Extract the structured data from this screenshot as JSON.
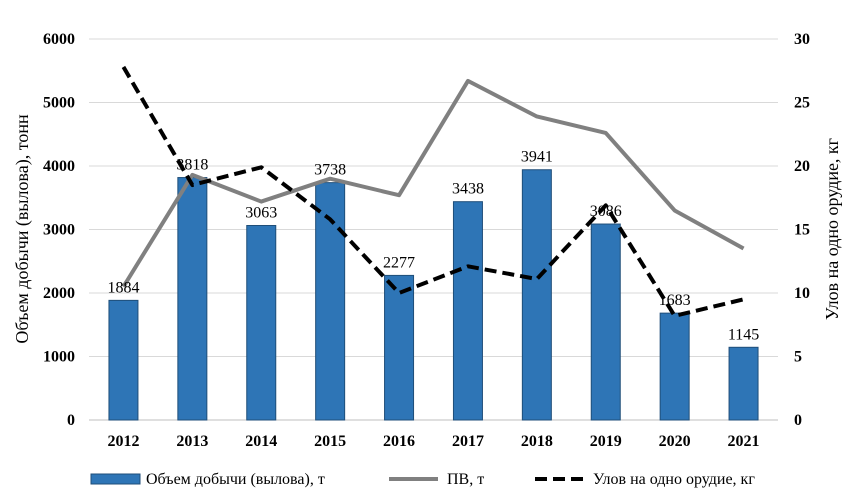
{
  "chart_data": {
    "type": "bar",
    "categories": [
      "2012",
      "2013",
      "2014",
      "2015",
      "2016",
      "2017",
      "2018",
      "2019",
      "2020",
      "2021"
    ],
    "series": [
      {
        "name": "Объем добычи (вылова), т",
        "type": "bar",
        "axis": "left",
        "color": "#2E75B6",
        "values": [
          1884,
          3818,
          3063,
          3738,
          2277,
          3438,
          3941,
          3086,
          1683,
          1145
        ]
      },
      {
        "name": "ПВ, т",
        "type": "line",
        "axis": "right",
        "color": "#808080",
        "values": [
          10.5,
          19.3,
          17.2,
          19.0,
          17.7,
          26.7,
          23.9,
          22.6,
          16.5,
          13.5
        ]
      },
      {
        "name": "Улов на одно орудие, кг",
        "type": "line-dashed",
        "axis": "right",
        "color": "#000000",
        "values": [
          27.8,
          18.5,
          19.9,
          15.8,
          10.0,
          12.1,
          11.1,
          16.9,
          8.2,
          9.5
        ]
      }
    ],
    "data_labels": [
      "1884",
      "3818",
      "3063",
      "3738",
      "2277",
      "3438",
      "3941",
      "3086",
      "1683",
      "1145"
    ],
    "ylabel": "Объем добычи (вылова), тонн",
    "y2label": "Улов на одно орудие, кг",
    "ylim": [
      0,
      6000
    ],
    "y2lim": [
      0,
      30
    ],
    "yticks": [
      "0",
      "1000",
      "2000",
      "3000",
      "4000",
      "5000",
      "6000"
    ],
    "y2ticks": [
      "0",
      "5",
      "10",
      "15",
      "20",
      "25",
      "30"
    ],
    "grid": true,
    "legend": "bottom"
  }
}
